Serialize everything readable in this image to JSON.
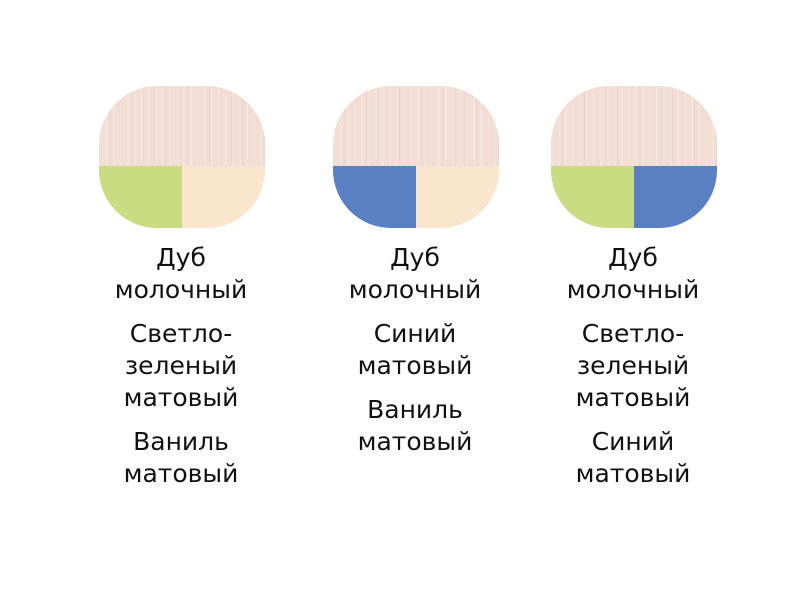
{
  "colors": {
    "oak": "#f1ddd4",
    "light_green": "#c9dc82",
    "vanilla": "#f9e6cd",
    "blue": "#5a80c4"
  },
  "options": [
    {
      "swatch": {
        "top": "oak",
        "bottom_left": "light_green",
        "bottom_right": "vanilla"
      },
      "labels": [
        "Дуб\nмолочный",
        "Светло-\nзеленый\nматовый",
        "Ваниль\nматовый"
      ]
    },
    {
      "swatch": {
        "top": "oak",
        "bottom_left": "blue",
        "bottom_right": "vanilla"
      },
      "labels": [
        "Дуб\nмолочный",
        "Синий\nматовый",
        "Ваниль\nматовый"
      ]
    },
    {
      "swatch": {
        "top": "oak",
        "bottom_left": "light_green",
        "bottom_right": "blue"
      },
      "labels": [
        "Дуб\nмолочный",
        "Светло-\nзеленый\nматовый",
        "Синий\nматовый"
      ]
    }
  ]
}
